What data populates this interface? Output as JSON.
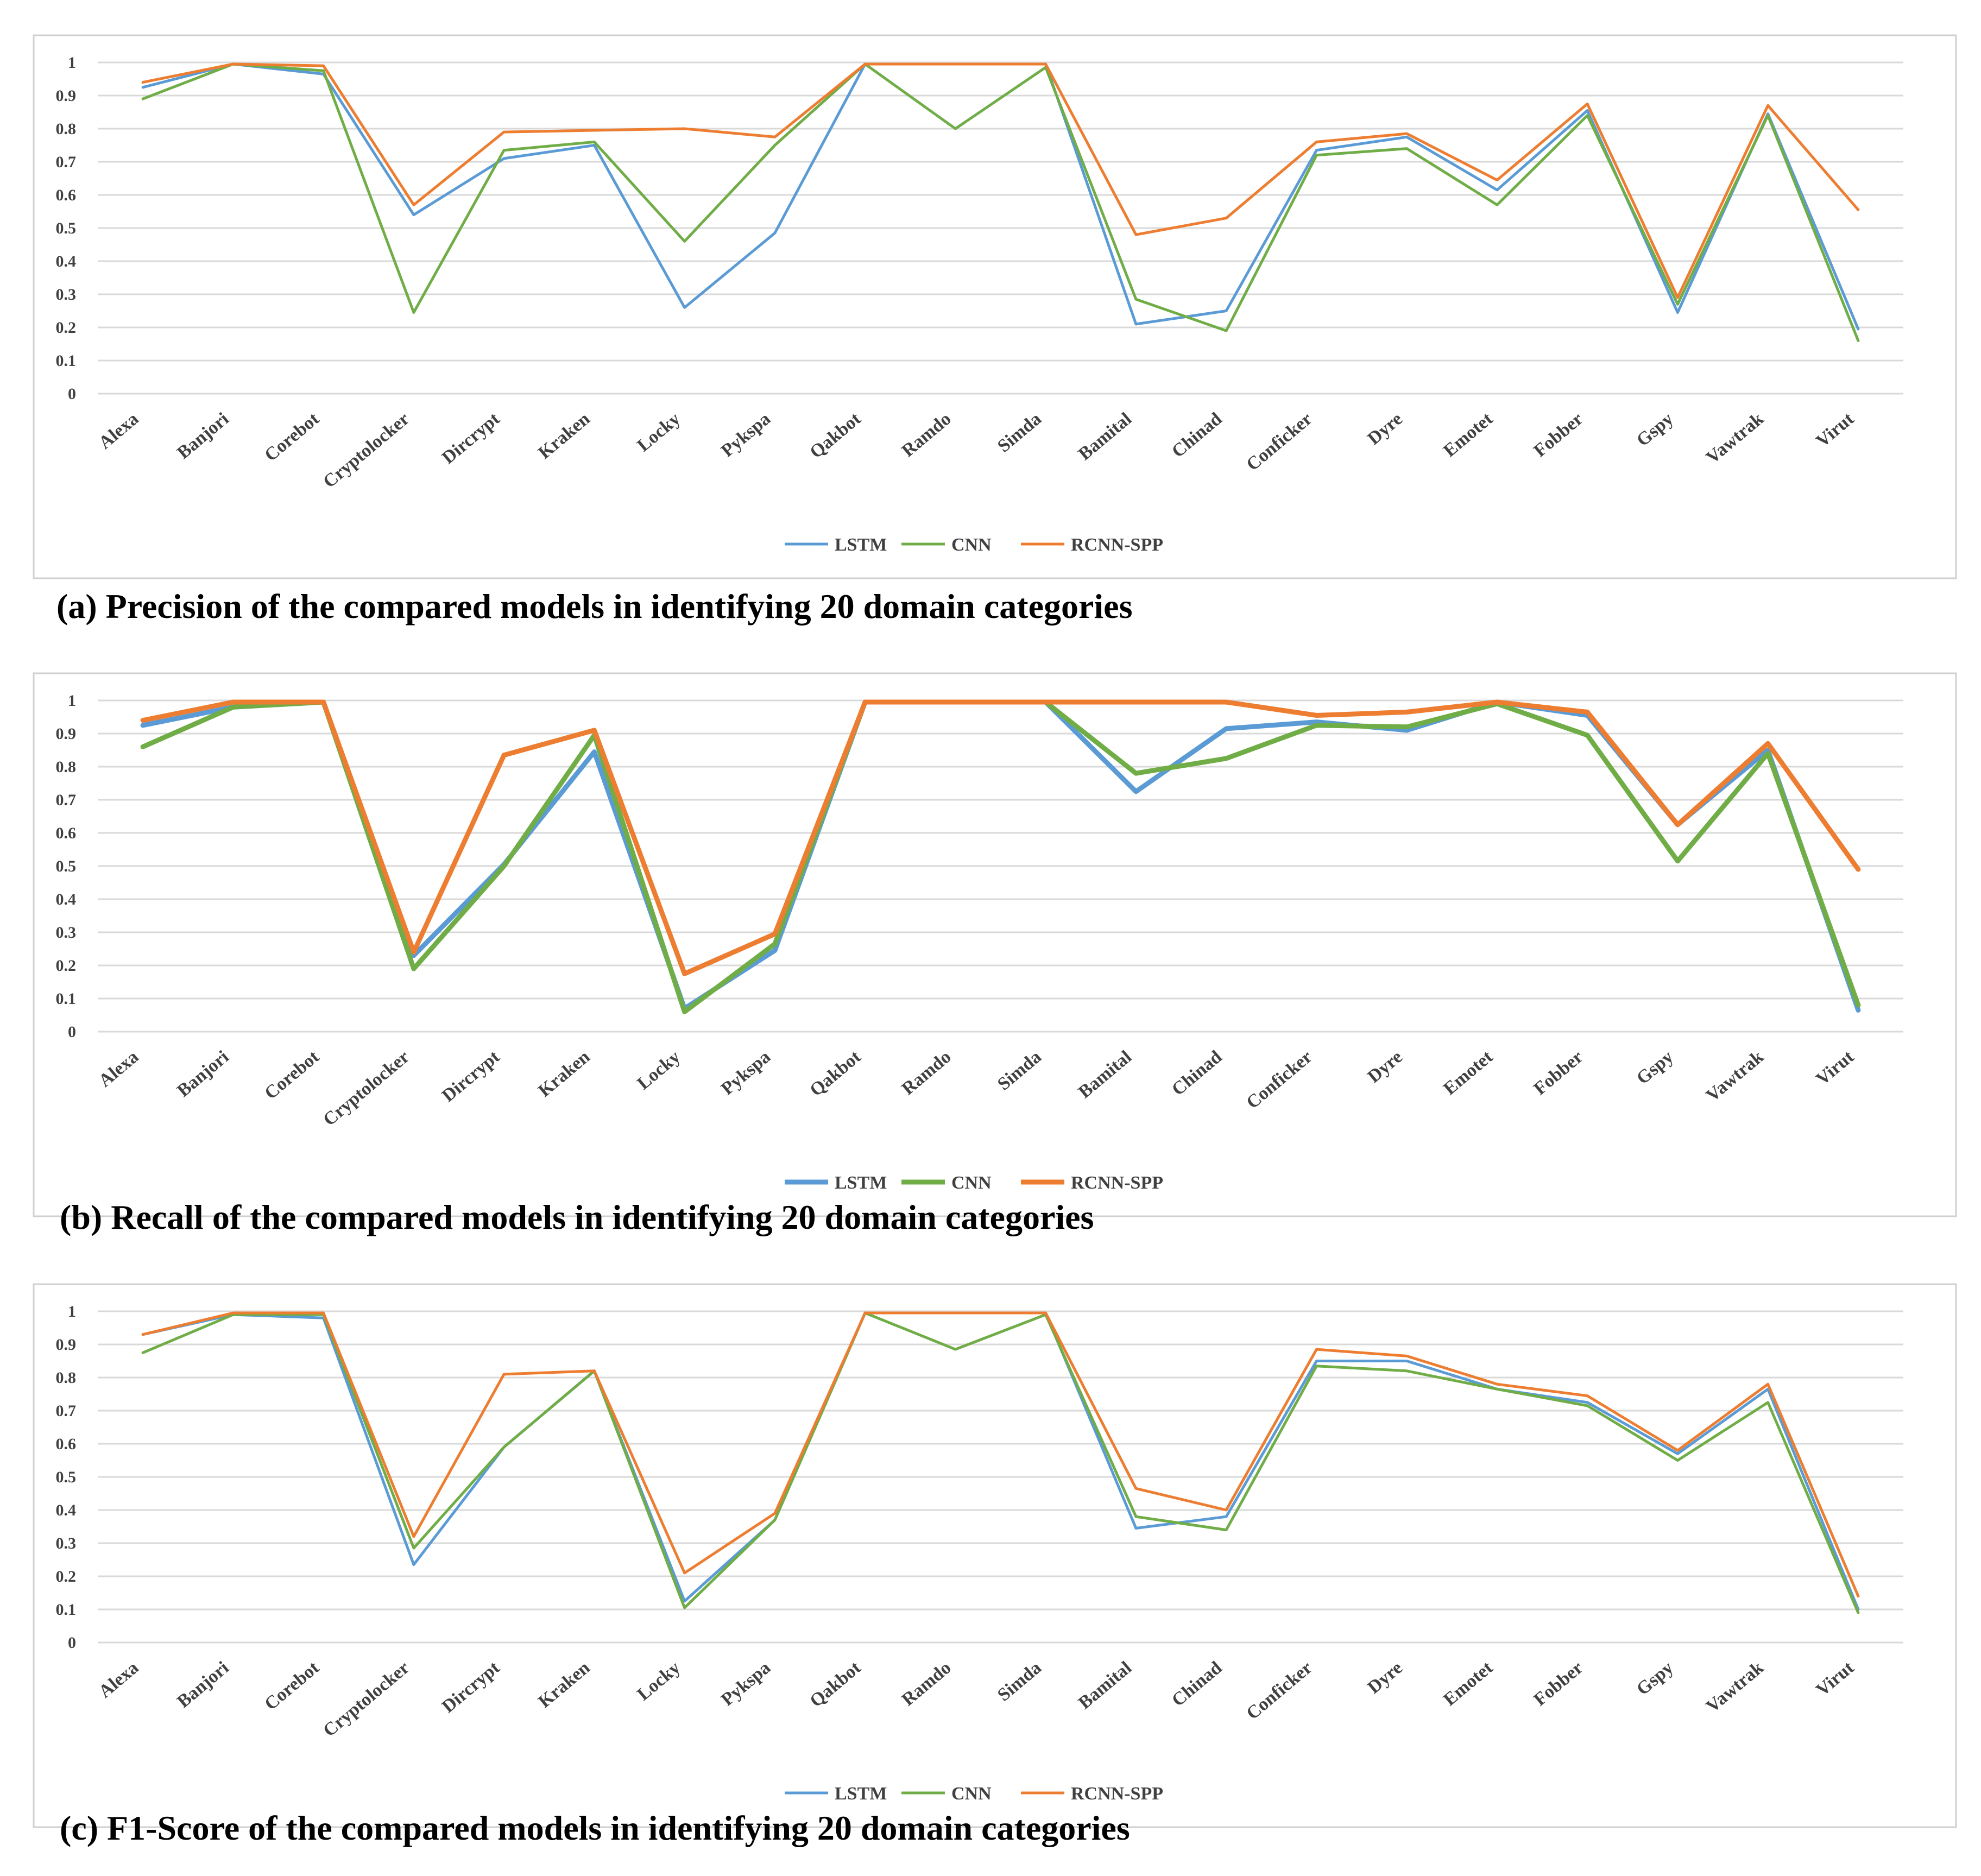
{
  "colors": {
    "lstm": "#5b9bd5",
    "cnn": "#70ad47",
    "rcnn": "#ed7d31",
    "grid": "#d9d9d9",
    "frame": "#d0d0d0"
  },
  "chart_data": [
    {
      "type": "line",
      "title": "(a) Precision of the compared models in identifying 20 domain categories",
      "categories": [
        "Alexa",
        "Banjori",
        "Corebot",
        "Cryptolocker",
        "Dircrypt",
        "Kraken",
        "Locky",
        "Pykspa",
        "Qakbot",
        "Ramdo",
        "Simda",
        "Bamital",
        "Chinad",
        "Conficker",
        "Dyre",
        "Emotet",
        "Fobber",
        "Gspy",
        "Vawtrak",
        "Virut"
      ],
      "yticks": [
        "0",
        "0.1",
        "0.2",
        "0.3",
        "0.4",
        "0.5",
        "0.6",
        "0.7",
        "0.8",
        "0.9",
        "1"
      ],
      "ylim": [
        0,
        1
      ],
      "legend": "bottom",
      "series": [
        {
          "name": "LSTM",
          "values": [
            0.925,
            0.995,
            0.965,
            0.54,
            0.71,
            0.75,
            0.26,
            0.485,
            0.995,
            0.995,
            0.995,
            0.21,
            0.25,
            0.735,
            0.775,
            0.615,
            0.855,
            0.245,
            0.845,
            0.195
          ]
        },
        {
          "name": "CNN",
          "values": [
            0.89,
            0.995,
            0.975,
            0.245,
            0.735,
            0.76,
            0.46,
            0.75,
            0.995,
            0.8,
            0.985,
            0.285,
            0.19,
            0.72,
            0.74,
            0.57,
            0.84,
            0.27,
            0.84,
            0.16
          ]
        },
        {
          "name": "RCNN-SPP",
          "values": [
            0.94,
            0.995,
            0.99,
            0.57,
            0.79,
            0.795,
            0.8,
            0.775,
            0.995,
            0.995,
            0.995,
            0.48,
            0.53,
            0.76,
            0.785,
            0.645,
            0.875,
            0.29,
            0.87,
            0.555
          ]
        }
      ]
    },
    {
      "type": "line",
      "title": "(b) Recall of the compared models in identifying 20 domain categories",
      "categories": [
        "Alexa",
        "Banjori",
        "Corebot",
        "Cryptolocker",
        "Dircrypt",
        "Kraken",
        "Locky",
        "Pykspa",
        "Qakbot",
        "Ramdo",
        "Simda",
        "Bamital",
        "Chinad",
        "Conficker",
        "Dyre",
        "Emotet",
        "Fobber",
        "Gspy",
        "Vawtrak",
        "Virut"
      ],
      "yticks": [
        "0",
        "0.1",
        "0.2",
        "0.3",
        "0.4",
        "0.5",
        "0.6",
        "0.7",
        "0.8",
        "0.9",
        "1"
      ],
      "ylim": [
        0,
        1
      ],
      "legend": "bottom",
      "series": [
        {
          "name": "LSTM",
          "values": [
            0.925,
            0.98,
            0.995,
            0.23,
            0.505,
            0.845,
            0.07,
            0.245,
            0.995,
            0.995,
            0.995,
            0.725,
            0.915,
            0.935,
            0.91,
            0.995,
            0.955,
            0.625,
            0.85,
            0.065
          ]
        },
        {
          "name": "CNN",
          "values": [
            0.86,
            0.98,
            0.995,
            0.19,
            0.5,
            0.895,
            0.06,
            0.265,
            0.995,
            0.995,
            0.995,
            0.78,
            0.825,
            0.925,
            0.92,
            0.99,
            0.895,
            0.515,
            0.84,
            0.08
          ]
        },
        {
          "name": "RCNN-SPP",
          "values": [
            0.94,
            0.995,
            0.995,
            0.24,
            0.835,
            0.91,
            0.175,
            0.295,
            0.995,
            0.995,
            0.995,
            0.995,
            0.995,
            0.955,
            0.965,
            0.995,
            0.965,
            0.625,
            0.87,
            0.49
          ]
        }
      ]
    },
    {
      "type": "line",
      "title": "(c) F1-Score of the compared models in identifying 20 domain categories",
      "categories": [
        "Alexa",
        "Banjori",
        "Corebot",
        "Cryptolocker",
        "Dircrypt",
        "Kraken",
        "Locky",
        "Pykspa",
        "Qakbot",
        "Ramdo",
        "Simda",
        "Bamital",
        "Chinad",
        "Conficker",
        "Dyre",
        "Emotet",
        "Fobber",
        "Gspy",
        "Vawtrak",
        "Virut"
      ],
      "yticks": [
        "0",
        "0.1",
        "0.2",
        "0.3",
        "0.4",
        "0.5",
        "0.6",
        "0.7",
        "0.8",
        "0.9",
        "1"
      ],
      "ylim": [
        0,
        1
      ],
      "legend": "bottom",
      "series": [
        {
          "name": "LSTM",
          "values": [
            0.93,
            0.99,
            0.98,
            0.235,
            0.59,
            0.82,
            0.125,
            0.37,
            0.995,
            0.995,
            0.995,
            0.345,
            0.38,
            0.85,
            0.85,
            0.765,
            0.725,
            0.57,
            0.765,
            0.1
          ]
        },
        {
          "name": "CNN",
          "values": [
            0.875,
            0.99,
            0.99,
            0.285,
            0.59,
            0.82,
            0.105,
            0.37,
            0.995,
            0.885,
            0.99,
            0.38,
            0.34,
            0.835,
            0.82,
            0.765,
            0.715,
            0.55,
            0.725,
            0.09
          ]
        },
        {
          "name": "RCNN-SPP",
          "values": [
            0.93,
            0.995,
            0.995,
            0.32,
            0.81,
            0.82,
            0.21,
            0.39,
            0.995,
            0.995,
            0.995,
            0.465,
            0.4,
            0.885,
            0.865,
            0.78,
            0.745,
            0.58,
            0.78,
            0.14
          ]
        }
      ]
    }
  ]
}
